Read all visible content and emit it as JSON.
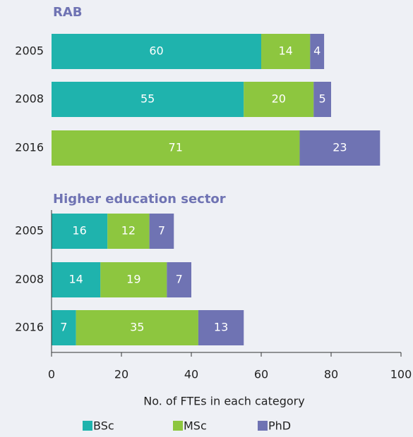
{
  "chart_data": [
    {
      "type": "bar",
      "orientation": "horizontal",
      "stacked": true,
      "title": "RAB",
      "categories": [
        "2005",
        "2008",
        "2016"
      ],
      "series": [
        {
          "name": "BSc",
          "color": "#1fb3ad",
          "values": [
            60,
            55,
            null
          ]
        },
        {
          "name": "MSc",
          "color": "#8dc63f",
          "values": [
            14,
            20,
            71
          ]
        },
        {
          "name": "PhD",
          "color": "#6f73b3",
          "values": [
            4,
            5,
            23
          ]
        }
      ],
      "xlim": [
        0,
        100
      ]
    },
    {
      "type": "bar",
      "orientation": "horizontal",
      "stacked": true,
      "title": "Higher education sector",
      "categories": [
        "2005",
        "2008",
        "2016"
      ],
      "series": [
        {
          "name": "BSc",
          "color": "#1fb3ad",
          "values": [
            16,
            14,
            7
          ]
        },
        {
          "name": "MSc",
          "color": "#8dc63f",
          "values": [
            12,
            19,
            35
          ]
        },
        {
          "name": "PhD",
          "color": "#6f73b3",
          "values": [
            7,
            7,
            13
          ]
        }
      ],
      "xlim": [
        0,
        100
      ],
      "xticks": [
        0,
        20,
        40,
        60,
        80,
        100
      ],
      "xlabel": "No. of FTEs in each category"
    }
  ]
}
